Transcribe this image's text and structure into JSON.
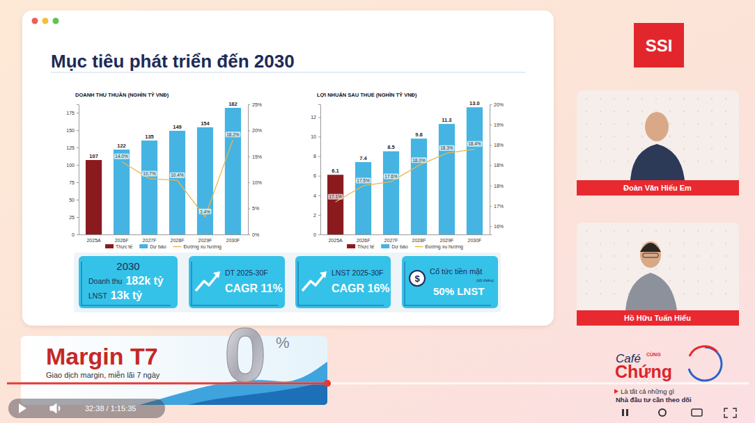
{
  "chart_data": [
    {
      "type": "bar",
      "title": "DOANH THU THUẦN (NGHÌN TỶ VNĐ)",
      "categories": [
        "2025A",
        "2026F",
        "2027F",
        "2028F",
        "2029F",
        "2030F"
      ],
      "series": [
        {
          "name": "Thực tế",
          "color": "#8b1a1f",
          "values": [
            107,
            null,
            null,
            null,
            null,
            null
          ]
        },
        {
          "name": "Dự báo",
          "color": "#45b4e2",
          "values": [
            null,
            122,
            135,
            149,
            154,
            182
          ]
        },
        {
          "name": "Đường xu hướng",
          "type": "line",
          "axis": "y2",
          "color": "#f0b44c",
          "line_style": "solid",
          "values": [
            null,
            14.0,
            10.7,
            10.4,
            3.4,
            18.2
          ],
          "value_labels": [
            null,
            "14.0%",
            "10.7%",
            "10.4%",
            "3.4%",
            "18.2%"
          ]
        }
      ],
      "ylim": [
        0,
        187
      ],
      "yticks": [
        0,
        25,
        50,
        75,
        100,
        125,
        150,
        175
      ],
      "y2lim": [
        0,
        25
      ],
      "y2ticks": [
        {
          "value": 0,
          "label": "0%"
        },
        {
          "value": 5,
          "label": "5%"
        },
        {
          "value": 10,
          "label": "10%"
        },
        {
          "value": 15,
          "label": "15%"
        },
        {
          "value": 20,
          "label": "20%"
        },
        {
          "value": 25,
          "label": "25%"
        }
      ],
      "stacked": true,
      "data_labels": true,
      "legend": "bottom",
      "grid": false
    },
    {
      "type": "bar",
      "title": "LỢI NHUẬN SAU THUẾ (NGHÌN TỶ VNĐ)",
      "categories": [
        "2025A",
        "2026F",
        "2027F",
        "2028F",
        "2029F",
        "2030F"
      ],
      "series": [
        {
          "name": "Thực tế",
          "color": "#8b1a1f",
          "values": [
            6.1,
            null,
            null,
            null,
            null,
            null
          ]
        },
        {
          "name": "Dự báo",
          "color": "#45b4e2",
          "values": [
            null,
            7.4,
            8.5,
            9.8,
            11.3,
            13.0
          ],
          "value_labels": [
            null,
            "7.4",
            "8.5",
            "9.8",
            "11.3",
            "13.0"
          ]
        },
        {
          "name": "Đường xu hướng",
          "type": "line",
          "axis": "y2",
          "color": "#f0b44c",
          "line_style": "solid",
          "values": [
            17.1,
            17.5,
            17.6,
            18.0,
            18.3,
            18.4
          ],
          "value_labels": [
            "17.1%",
            "17.5%",
            "17.6%",
            "18.0%",
            "18.3%",
            "18.4%"
          ]
        }
      ],
      "ylim": [
        0,
        13.3
      ],
      "yticks": [
        0,
        2,
        4,
        6,
        8,
        10,
        12
      ],
      "y2lim": [
        16.3,
        19.5
      ],
      "y2ticks": [
        {
          "value": 16.5,
          "label": "16%"
        },
        {
          "value": 17.0,
          "label": "17%"
        },
        {
          "value": 17.5,
          "label": "18%"
        },
        {
          "value": 18.0,
          "label": "18%"
        },
        {
          "value": 18.5,
          "label": "18%"
        },
        {
          "value": 19.0,
          "label": "19%"
        },
        {
          "value": 19.5,
          "label": "20%"
        }
      ],
      "stacked": true,
      "data_labels": true,
      "legend": "bottom",
      "grid": false
    }
  ],
  "page": {
    "title": "Mục tiêu phát triển đến 2030",
    "logo": "SSI",
    "cards": [
      {
        "heading": "2030",
        "rows": [
          {
            "label": "Doanh thu",
            "value": "182k tỷ"
          },
          {
            "label": "LNST",
            "value": "13k tỷ"
          }
        ]
      },
      {
        "heading": "DT 2025-30F",
        "value": "CAGR 11%"
      },
      {
        "heading": "LNST 2025-30F",
        "value": "CAGR 16%"
      },
      {
        "icon": "$",
        "heading": "Cổ tức tiền mặt",
        "note": "(tối thiểu)",
        "value": "50% LNST"
      }
    ],
    "speakers": [
      "Đoàn Văn Hiếu Em",
      "Hồ Hữu Tuấn Hiểu"
    ],
    "banner": {
      "title": "Margin T7",
      "subtitle": "Giao dịch margin, miễn lãi 7 ngày",
      "big": "0",
      "unit": "%"
    },
    "show": {
      "words": [
        "Café",
        "CÙNG",
        "Chứng"
      ],
      "tagline": [
        "Là tất cả những gì",
        "Nhà đầu tư cần theo dõi"
      ]
    },
    "player": {
      "time": "32:38 / 1:15:35"
    }
  }
}
